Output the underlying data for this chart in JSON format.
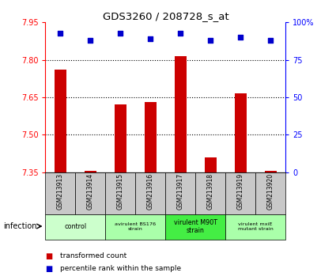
{
  "title": "GDS3260 / 208728_s_at",
  "samples": [
    "GSM213913",
    "GSM213914",
    "GSM213915",
    "GSM213916",
    "GSM213917",
    "GSM213918",
    "GSM213919",
    "GSM213920"
  ],
  "bar_values": [
    7.76,
    7.355,
    7.62,
    7.63,
    7.815,
    7.41,
    7.665,
    7.356
  ],
  "dot_values": [
    93,
    88,
    93,
    89,
    93,
    88,
    90,
    88
  ],
  "ylim_left": [
    7.35,
    7.95
  ],
  "ylim_right": [
    0,
    100
  ],
  "yticks_left": [
    7.35,
    7.5,
    7.65,
    7.8,
    7.95
  ],
  "yticks_right": [
    0,
    25,
    50,
    75,
    100
  ],
  "bar_color": "#cc0000",
  "dot_color": "#0000cc",
  "bar_bottom": 7.35,
  "groups": [
    {
      "label": "control",
      "samples": [
        0,
        1
      ],
      "color": "#ccffcc",
      "fontsize": 8
    },
    {
      "label": "avirulent BS176\nstrain",
      "samples": [
        2,
        3
      ],
      "color": "#aaffaa",
      "fontsize": 6.5
    },
    {
      "label": "virulent M90T\nstrain",
      "samples": [
        4,
        5
      ],
      "color": "#44ee44",
      "fontsize": 8
    },
    {
      "label": "virulent mxiE\nmutant strain",
      "samples": [
        6,
        7
      ],
      "color": "#aaffaa",
      "fontsize": 6.5
    }
  ],
  "xlabel_infection": "infection",
  "legend_bar_label": "transformed count",
  "legend_dot_label": "percentile rank within the sample",
  "hlines": [
    7.5,
    7.65,
    7.8
  ],
  "sample_col_bg": "#c8c8c8",
  "plot_bg": "#ffffff",
  "bar_width": 0.4
}
